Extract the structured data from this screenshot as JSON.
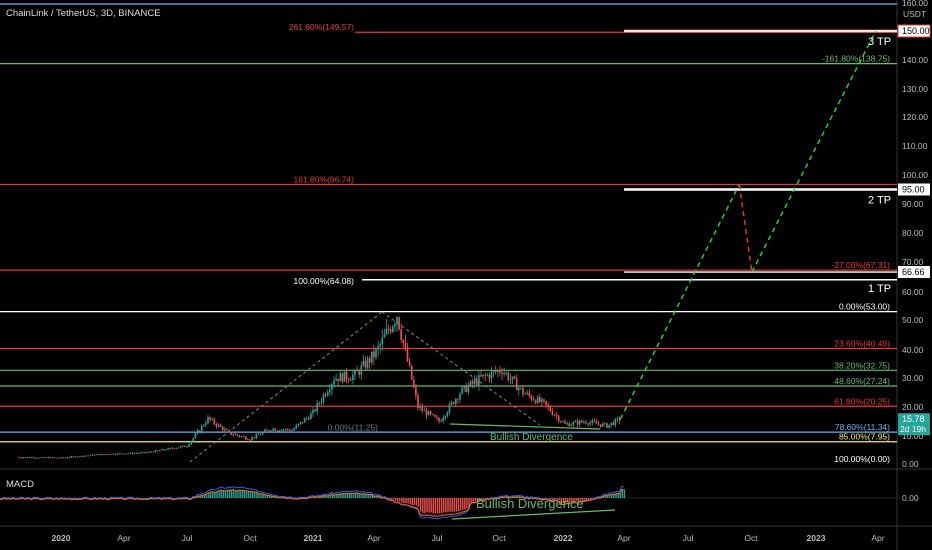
{
  "header": {
    "title": "ChainLink / TetherUS, 3D, BINANCE"
  },
  "colors": {
    "background": "#000000",
    "up": "#26a69a",
    "down": "#ef5350",
    "fib_red": "#e53935",
    "fib_green": "#66bb6a",
    "fib_blue": "#64b5f6",
    "fib_yellow": "#ffee58",
    "white": "#ffffff",
    "projection": "#22dd22"
  },
  "chart_data": [
    {
      "type": "line",
      "title": "",
      "scale": "log",
      "y_unit": "USDT",
      "ylim": [
        0,
        165
      ],
      "y_ticks": [
        "160.00",
        "150.00",
        "140.00",
        "130.00",
        "120.00",
        "110.00",
        "100.00",
        "90.00",
        "80.00",
        "70.00",
        "60.00",
        "50.00",
        "40.00",
        "30.00",
        "20.00",
        "10.00",
        "0.00"
      ],
      "x_ticks": [
        "2020",
        "Apr",
        "Jul",
        "Oct",
        "2021",
        "Apr",
        "Jul",
        "Oct",
        "2022",
        "Apr",
        "Jul",
        "Oct",
        "2023",
        "Apr"
      ],
      "price_path": {
        "x": [
          "2019-11",
          "2020-01",
          "2020-03",
          "2020-05",
          "2020-07",
          "2020-08",
          "2020-09",
          "2020-10",
          "2020-11",
          "2020-12",
          "2021-01",
          "2021-02",
          "2021-03",
          "2021-04",
          "2021-05",
          "2021-06",
          "2021-07",
          "2021-08",
          "2021-09",
          "2021-10",
          "2021-11",
          "2021-12",
          "2022-01",
          "2022-02",
          "2022-03",
          "2022-03-20"
        ],
        "y": [
          2.4,
          2.2,
          3.5,
          4.0,
          6.5,
          16.0,
          11.0,
          9.0,
          12.5,
          12.0,
          18.0,
          30.0,
          31.0,
          39.0,
          52.0,
          20.0,
          15.0,
          25.0,
          30.0,
          33.0,
          25.0,
          21.0,
          14.0,
          15.0,
          13.5,
          15.78
        ]
      },
      "projection": {
        "x": [
          "2022-03-20",
          "2022-09-10",
          "2022-09-28",
          "2023-03-25"
        ],
        "y": [
          15.78,
          96.74,
          66.66,
          150.0
        ]
      },
      "fib_levels": [
        {
          "label": "261.80%(149.57)",
          "value": 149.57,
          "color": "#e53935"
        },
        {
          "label": "-161.80%(138.75)",
          "value": 138.75,
          "color": "#66bb6a"
        },
        {
          "label": "161.80%(96.74)",
          "value": 96.74,
          "color": "#e53935"
        },
        {
          "label": "-27.00%(67.31)",
          "value": 67.31,
          "color": "#e53935"
        },
        {
          "label": "100.00%(64.08)",
          "value": 64.08,
          "color": "#ffffff"
        },
        {
          "label": "0.00%(53.00)",
          "value": 53.0,
          "color": "#ffffff"
        },
        {
          "label": "23.60%(40.49)",
          "value": 40.49,
          "color": "#e53935"
        },
        {
          "label": "38.20%(32.75)",
          "value": 32.75,
          "color": "#66bb6a"
        },
        {
          "label": "48.60%(27.24)",
          "value": 27.24,
          "color": "#66bb6a"
        },
        {
          "label": "61.80%(20.25)",
          "value": 20.25,
          "color": "#e53935"
        },
        {
          "label": "78.60%(11.34)",
          "value": 11.34,
          "color": "#64b5f6"
        },
        {
          "label": "85.00%(7.95)",
          "value": 7.95,
          "color": "#ffee58"
        },
        {
          "label": "100.00%(0.00)",
          "value": 0.0,
          "color": "#ffffff"
        },
        {
          "label": "0.00%(11.25)",
          "value": 11.25,
          "color": "#777777"
        }
      ],
      "price_labels": [
        {
          "text": "150.00",
          "value": 150.0
        },
        {
          "text": "95.00",
          "value": 95.0
        },
        {
          "text": "66.66",
          "value": 66.66
        },
        {
          "text": "15.78",
          "value": 15.78,
          "sub": "2d 19h"
        }
      ],
      "targets": [
        {
          "label": "3 TP",
          "value": 150.0
        },
        {
          "label": "2 TP",
          "value": 95.0
        },
        {
          "label": "1 TP",
          "value": 64.08
        }
      ],
      "annotations": [
        "Bullish Divergence"
      ]
    },
    {
      "type": "line",
      "title": "MACD",
      "y_ticks": [
        "0.00"
      ],
      "annotations": [
        "Bullish Divergence"
      ]
    }
  ]
}
